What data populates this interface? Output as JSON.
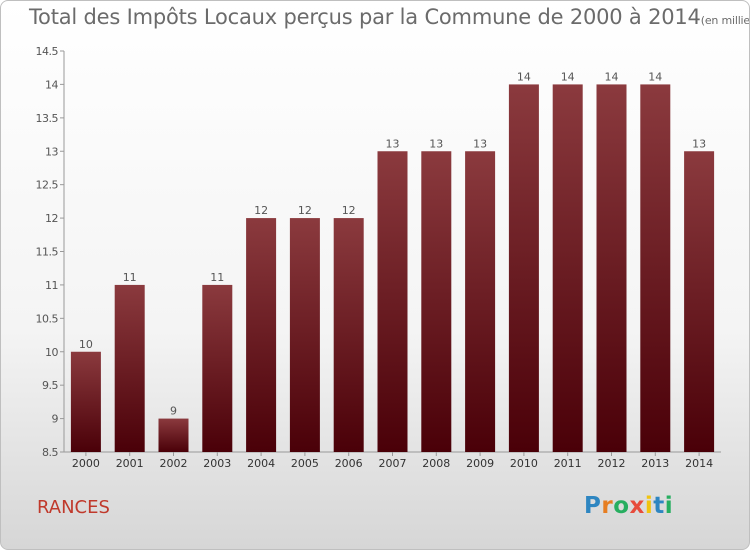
{
  "title": "Total des Impôts Locaux perçus par la Commune de 2000 à 2014",
  "unit": "(en milliers d'€)",
  "commune": "RANCES",
  "logo": {
    "letters": [
      "P",
      "r",
      "o",
      "x",
      "i",
      "t",
      "i"
    ],
    "colors": [
      "#2e86c1",
      "#e67e22",
      "#27ae60",
      "#e74c3c",
      "#f1c40f",
      "#2e86c1",
      "#27ae60"
    ]
  },
  "colors": {
    "bar_top": "#8b3a3e",
    "bar_bottom": "#4a0008",
    "axis": "#999999",
    "text": "#555555"
  },
  "chart_data": {
    "type": "bar",
    "categories": [
      "2000",
      "2001",
      "2002",
      "2003",
      "2004",
      "2005",
      "2006",
      "2007",
      "2008",
      "2009",
      "2010",
      "2011",
      "2012",
      "2013",
      "2014"
    ],
    "values": [
      10,
      11,
      9,
      11,
      12,
      12,
      12,
      13,
      13,
      13,
      14,
      14,
      14,
      14,
      13
    ],
    "ylim": [
      8.5,
      14.5
    ],
    "yticks": [
      8.5,
      9,
      9.5,
      10,
      10.5,
      11,
      11.5,
      12,
      12.5,
      13,
      13.5,
      14,
      14.5
    ],
    "grid": false,
    "legend": "none"
  }
}
